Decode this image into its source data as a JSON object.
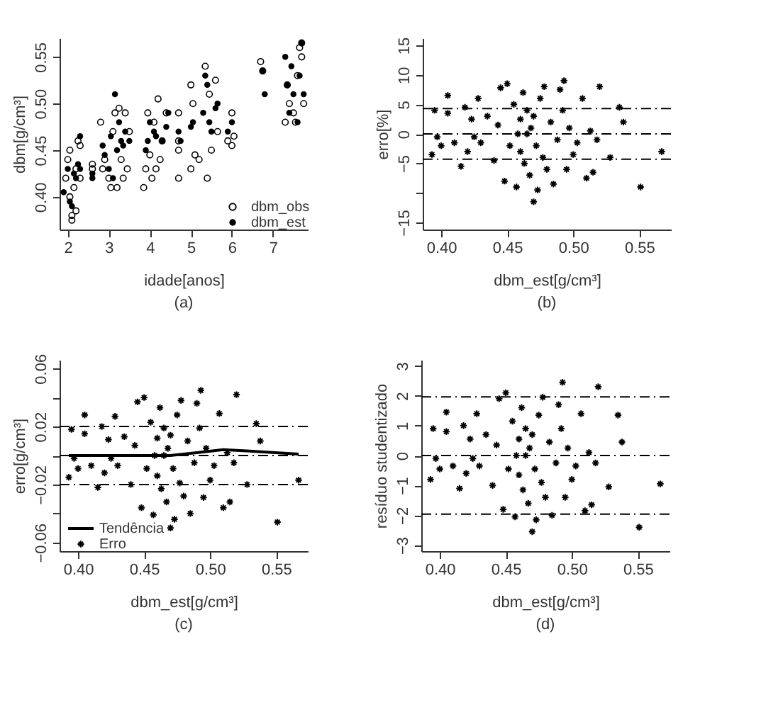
{
  "chart_data": [
    {
      "type": "scatter",
      "xlabel": "idade[anos]",
      "ylabel": "dbm[g/cm³]",
      "annotations": [
        "(a)"
      ],
      "marker": "circle",
      "legend": "bottom right",
      "xlim": [
        1.8,
        7.85
      ],
      "ylim": [
        0.365,
        0.57
      ],
      "xticks": [
        2,
        3,
        4,
        5,
        6,
        7
      ],
      "yticks": [
        {
          "value": 0.4,
          "label": "0.40"
        },
        0.45,
        {
          "value": 0.5,
          "label": "0.50"
        },
        0.55
      ],
      "series": [
        {
          "name": "dbm_obs",
          "color": "#000000",
          "x": [
            1.95,
            2.0,
            2.05,
            2.05,
            2.1,
            2.1,
            2.15,
            2.2,
            2.2,
            2.25,
            2.3,
            2.3,
            2.6,
            2.6,
            2.8,
            2.85,
            2.9,
            3.0,
            3.05,
            3.1,
            3.15,
            3.2,
            3.25,
            3.3,
            3.35,
            3.4,
            3.45,
            3.5,
            3.85,
            3.9,
            3.95,
            4.0,
            4.05,
            4.1,
            4.15,
            4.2,
            4.25,
            4.3,
            4.4,
            4.7,
            4.7,
            4.7,
            4.7,
            5.0,
            5.0,
            5.05,
            5.1,
            5.2,
            5.35,
            5.4,
            5.45,
            5.5,
            5.6,
            5.65,
            5.9,
            6.0,
            6.0,
            6.05,
            6.7,
            6.75,
            7.3,
            7.35,
            7.4,
            7.5,
            7.55,
            7.6,
            7.65,
            7.7,
            7.7,
            7.75
          ],
          "values": [
            0.42,
            0.44,
            0.45,
            0.4,
            0.38,
            0.375,
            0.41,
            0.43,
            0.385,
            0.46,
            0.455,
            0.42,
            0.435,
            0.43,
            0.48,
            0.43,
            0.44,
            0.42,
            0.41,
            0.47,
            0.49,
            0.41,
            0.495,
            0.44,
            0.42,
            0.49,
            0.43,
            0.47,
            0.41,
            0.43,
            0.49,
            0.445,
            0.42,
            0.48,
            0.43,
            0.505,
            0.44,
            0.46,
            0.49,
            0.42,
            0.49,
            0.46,
            0.45,
            0.52,
            0.43,
            0.5,
            0.445,
            0.44,
            0.54,
            0.42,
            0.51,
            0.45,
            0.525,
            0.47,
            0.46,
            0.455,
            0.49,
            0.465,
            0.545,
            0.535,
            0.48,
            0.52,
            0.5,
            0.49,
            0.48,
            0.53,
            0.56,
            0.55,
            0.565,
            0.5
          ]
        },
        {
          "name": "dbm_est",
          "color": "#000000",
          "x": [
            1.9,
            2.0,
            2.05,
            2.1,
            2.15,
            2.2,
            2.25,
            2.3,
            2.3,
            2.6,
            2.6,
            2.85,
            2.9,
            3.0,
            3.05,
            3.1,
            3.15,
            3.2,
            3.25,
            3.3,
            3.35,
            3.4,
            3.5,
            3.9,
            3.95,
            4.0,
            4.1,
            4.15,
            4.3,
            4.4,
            4.45,
            4.7,
            4.75,
            5.0,
            5.05,
            5.3,
            5.35,
            5.4,
            5.45,
            5.5,
            5.6,
            5.65,
            5.9,
            6.0,
            6.75,
            6.8,
            7.3,
            7.35,
            7.4,
            7.45,
            7.5,
            7.6,
            7.65,
            7.7,
            7.75
          ],
          "values": [
            0.405,
            0.43,
            0.395,
            0.39,
            0.425,
            0.42,
            0.435,
            0.465,
            0.43,
            0.42,
            0.425,
            0.455,
            0.445,
            0.43,
            0.465,
            0.42,
            0.51,
            0.45,
            0.48,
            0.46,
            0.455,
            0.47,
            0.46,
            0.45,
            0.46,
            0.48,
            0.47,
            0.465,
            0.46,
            0.475,
            0.49,
            0.47,
            0.46,
            0.475,
            0.48,
            0.49,
            0.53,
            0.52,
            0.48,
            0.47,
            0.495,
            0.5,
            0.47,
            0.48,
            0.535,
            0.51,
            0.55,
            0.52,
            0.49,
            0.54,
            0.51,
            0.48,
            0.53,
            0.565,
            0.51
          ]
        }
      ]
    },
    {
      "type": "scatter",
      "xlabel": "dbm_est[g/cm³]",
      "ylabel": "erro[%]",
      "annotations": [
        "(b)"
      ],
      "marker": "cross",
      "xlim": [
        0.386,
        0.574
      ],
      "ylim": [
        -16.2,
        16.2
      ],
      "xticks": [
        {
          "value": 0.4,
          "label": "0.40"
        },
        {
          "value": 0.45,
          "label": "0.45"
        },
        {
          "value": 0.5,
          "label": "0.50"
        },
        {
          "value": 0.55,
          "label": "0.55"
        }
      ],
      "yticks": [
        -15,
        {
          "value": -10,
          "label": null
        },
        -5,
        0,
        5,
        10,
        15
      ],
      "ref_lines": [
        {
          "axis": "y",
          "value": 4.3,
          "line_style": "dashed"
        },
        {
          "axis": "y",
          "value": 0,
          "line_style": "dashed"
        },
        {
          "axis": "y",
          "value": -4.3,
          "line_style": "dashed"
        }
      ],
      "series": [
        {
          "color": "#000000",
          "x": [
            0.393,
            0.395,
            0.397,
            0.4,
            0.405,
            0.405,
            0.41,
            0.415,
            0.418,
            0.42,
            0.423,
            0.425,
            0.428,
            0.43,
            0.435,
            0.44,
            0.443,
            0.445,
            0.448,
            0.45,
            0.452,
            0.455,
            0.457,
            0.458,
            0.46,
            0.46,
            0.462,
            0.463,
            0.465,
            0.465,
            0.467,
            0.468,
            0.47,
            0.47,
            0.472,
            0.473,
            0.475,
            0.477,
            0.478,
            0.48,
            0.483,
            0.485,
            0.488,
            0.49,
            0.492,
            0.493,
            0.495,
            0.497,
            0.5,
            0.503,
            0.507,
            0.51,
            0.513,
            0.515,
            0.518,
            0.52,
            0.528,
            0.535,
            0.538,
            0.551,
            0.567
          ],
          "values": [
            -3.5,
            4,
            -0.5,
            -2,
            6.5,
            3.5,
            -1.5,
            -5.5,
            4.5,
            -3,
            2.5,
            -0.5,
            6,
            -1.5,
            3,
            -4.5,
            1.5,
            7.8,
            -8,
            8.5,
            -2,
            5,
            -9,
            0,
            2.5,
            -3,
            7,
            -5,
            0,
            4,
            -7,
            1,
            3,
            -11.5,
            -2,
            -9.5,
            6,
            -4,
            8,
            -6,
            2,
            -8.5,
            -1,
            7.5,
            4,
            9,
            -6,
            1,
            -3.5,
            -1.5,
            6,
            -7.5,
            0.5,
            -6.5,
            -1,
            8,
            -4,
            4.5,
            2,
            -9,
            -3
          ]
        }
      ]
    },
    {
      "type": "scatter",
      "xlabel": "dbm_est[g/cm³]",
      "ylabel": "erro[g/cm³]",
      "annotations": [
        "(c)"
      ],
      "marker": "cross",
      "legend": "bottom left",
      "xlim": [
        0.386,
        0.574
      ],
      "ylim": [
        -0.066,
        0.066
      ],
      "xticks": [
        {
          "value": 0.4,
          "label": "0.40"
        },
        0.45,
        {
          "value": 0.5,
          "label": "0.50"
        },
        0.55
      ],
      "yticks": [
        -0.06,
        {
          "value": -0.04,
          "label": null
        },
        -0.02,
        {
          "value": 0,
          "label": null
        },
        0.02,
        {
          "value": 0.04,
          "label": null
        },
        0.06
      ],
      "ref_lines": [
        {
          "axis": "y",
          "value": 0.02,
          "line_style": "dashed"
        },
        {
          "axis": "y",
          "value": 0,
          "line_style": "dashed"
        },
        {
          "axis": "y",
          "value": -0.02,
          "line_style": "dashed"
        }
      ],
      "series": [
        {
          "type": "line",
          "name": "Tendência",
          "color": "#000000",
          "marker": "none",
          "x": [
            0.393,
            0.45,
            0.47,
            0.49,
            0.51,
            0.53,
            0.567
          ],
          "values": [
            0.0,
            0.0,
            0.0,
            0.002,
            0.004,
            0.003,
            0.001
          ]
        },
        {
          "type": "scatter",
          "name": "Erro",
          "color": "#000000",
          "x": [
            0.393,
            0.395,
            0.397,
            0.4,
            0.405,
            0.405,
            0.41,
            0.415,
            0.418,
            0.42,
            0.423,
            0.425,
            0.428,
            0.43,
            0.435,
            0.44,
            0.443,
            0.445,
            0.448,
            0.45,
            0.452,
            0.455,
            0.457,
            0.458,
            0.46,
            0.46,
            0.462,
            0.463,
            0.465,
            0.465,
            0.467,
            0.468,
            0.47,
            0.47,
            0.472,
            0.473,
            0.475,
            0.477,
            0.478,
            0.48,
            0.483,
            0.485,
            0.488,
            0.49,
            0.492,
            0.493,
            0.495,
            0.497,
            0.5,
            0.503,
            0.507,
            0.51,
            0.513,
            0.515,
            0.518,
            0.52,
            0.528,
            0.535,
            0.538,
            0.551,
            0.567
          ],
          "values": [
            -0.015,
            0.018,
            -0.002,
            -0.009,
            0.028,
            0.015,
            -0.007,
            -0.022,
            0.02,
            -0.012,
            0.011,
            -0.002,
            0.027,
            -0.007,
            0.013,
            -0.02,
            0.007,
            0.037,
            -0.036,
            0.04,
            -0.009,
            0.023,
            -0.041,
            0,
            0.012,
            -0.014,
            0.033,
            -0.023,
            0,
            0.019,
            -0.032,
            0.005,
            0.014,
            -0.05,
            -0.009,
            -0.044,
            0.028,
            -0.019,
            0.038,
            -0.028,
            0.01,
            -0.04,
            -0.005,
            0.036,
            0.019,
            0.045,
            -0.029,
            0.005,
            -0.017,
            -0.007,
            0.029,
            -0.036,
            0.002,
            -0.032,
            -0.005,
            0.042,
            -0.02,
            0.022,
            0.01,
            -0.046,
            -0.017
          ]
        }
      ]
    },
    {
      "type": "scatter",
      "xlabel": "dbm_est[g/cm³]",
      "ylabel": "resíduo studentizado",
      "annotations": [
        "(d)"
      ],
      "marker": "cross",
      "xlim": [
        0.386,
        0.574
      ],
      "ylim": [
        -3.2,
        3.2
      ],
      "xticks": [
        {
          "value": 0.4,
          "label": "0.40"
        },
        0.45,
        {
          "value": 0.5,
          "label": "0.50"
        },
        0.55
      ],
      "yticks": [
        -3,
        -2,
        -1,
        0,
        1,
        2,
        3
      ],
      "ref_lines": [
        {
          "axis": "y",
          "value": 1.96,
          "line_style": "dashed"
        },
        {
          "axis": "y",
          "value": 0,
          "line_style": "dashed"
        },
        {
          "axis": "y",
          "value": -1.96,
          "line_style": "dashed"
        }
      ],
      "series": [
        {
          "color": "#000000",
          "x": [
            0.393,
            0.395,
            0.397,
            0.4,
            0.405,
            0.405,
            0.41,
            0.415,
            0.418,
            0.42,
            0.423,
            0.425,
            0.428,
            0.43,
            0.435,
            0.44,
            0.443,
            0.445,
            0.448,
            0.45,
            0.452,
            0.455,
            0.457,
            0.458,
            0.46,
            0.46,
            0.462,
            0.463,
            0.465,
            0.465,
            0.467,
            0.468,
            0.47,
            0.47,
            0.472,
            0.473,
            0.475,
            0.477,
            0.478,
            0.48,
            0.483,
            0.485,
            0.488,
            0.49,
            0.492,
            0.493,
            0.495,
            0.497,
            0.5,
            0.503,
            0.507,
            0.51,
            0.513,
            0.515,
            0.518,
            0.52,
            0.528,
            0.535,
            0.538,
            0.551,
            0.567
          ],
          "values": [
            -0.8,
            0.9,
            -0.1,
            -0.45,
            1.45,
            0.8,
            -0.35,
            -1.1,
            1.0,
            -0.6,
            0.55,
            -0.1,
            1.4,
            -0.35,
            0.7,
            -1.0,
            0.35,
            1.9,
            -1.8,
            2.1,
            -0.45,
            1.15,
            -2.05,
            0,
            0.55,
            -0.65,
            1.6,
            -1.15,
            0,
            0.9,
            -1.6,
            0.25,
            0.7,
            -2.55,
            -0.45,
            -2.15,
            1.35,
            -0.9,
            1.95,
            -1.4,
            0.45,
            -2.0,
            -0.25,
            1.7,
            0.9,
            2.45,
            -1.4,
            0.25,
            -0.8,
            -0.35,
            1.4,
            -1.85,
            0.1,
            -1.65,
            -0.25,
            2.3,
            -1.05,
            1.35,
            0.45,
            -2.4,
            -0.95
          ]
        }
      ]
    }
  ]
}
